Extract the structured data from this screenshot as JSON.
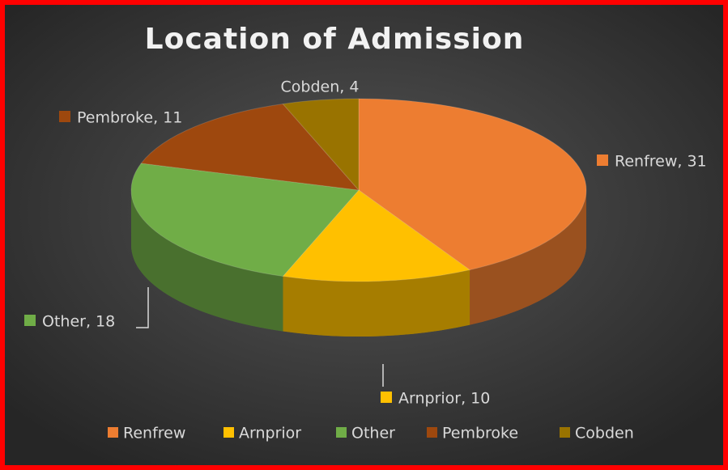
{
  "chart_data": {
    "type": "pie",
    "title": "Location of Admission",
    "categories": [
      "Renfrew",
      "Arnprior",
      "Other",
      "Pembroke",
      "Cobden"
    ],
    "values": [
      31,
      10,
      18,
      11,
      4
    ],
    "value_labels": [
      "Renfrew, 31",
      "Arnprior, 10",
      "Other, 18",
      "Pembroke, 11",
      "Cobden, 4"
    ],
    "colors": [
      "#ed7d31",
      "#ffc000",
      "#70ad47",
      "#9e480e",
      "#997300"
    ],
    "legend": "bottom"
  }
}
